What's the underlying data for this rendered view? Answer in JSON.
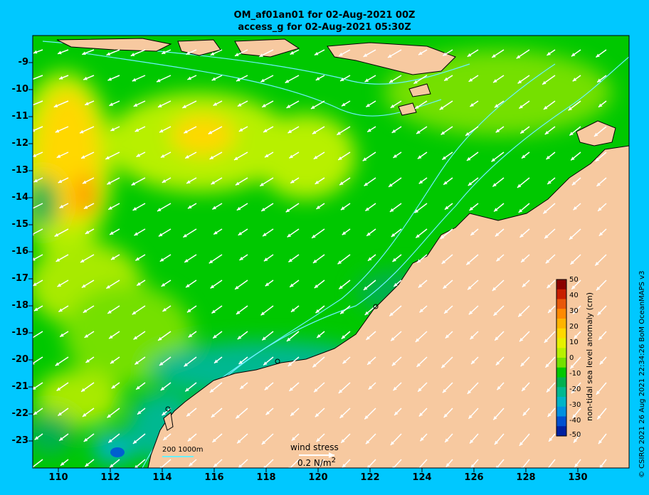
{
  "title_line1": "OM_af01an01 for 02-Aug-2021 00Z",
  "title_line2": "access_g for 02-Aug-2021 05:30Z",
  "y_axis": {
    "ticks": [
      "-9",
      "-10",
      "-11",
      "-12",
      "-13",
      "-14",
      "-15",
      "-16",
      "-17",
      "-18",
      "-19",
      "-20",
      "-21",
      "-22",
      "-23"
    ]
  },
  "x_axis": {
    "ticks": [
      "110",
      "112",
      "114",
      "116",
      "118",
      "120",
      "122",
      "124",
      "126",
      "128",
      "130"
    ]
  },
  "colorbar": {
    "label": "non-tidal sea level anomaly (cm)",
    "ticks": [
      "50",
      "40",
      "30",
      "20",
      "10",
      "0",
      "-10",
      "-20",
      "-30",
      "-40",
      "-50"
    ],
    "colors": [
      "#8b0000",
      "#c81e00",
      "#e8580a",
      "#ff8a00",
      "#ffb400",
      "#ffd800",
      "#e6f000",
      "#b8f000",
      "#74e000",
      "#00c800",
      "#00b050",
      "#00b890",
      "#00b4c8",
      "#0090e0",
      "#0050d0",
      "#0020a0"
    ]
  },
  "wind_stress": {
    "label": "wind stress",
    "value": "0.2 N/m",
    "superscript": "2"
  },
  "bathymetry_scale": {
    "label": "200  1000m"
  },
  "credit": "© CSIRO 2021  26 Aug 2021 22:34:26 BoM OceanMAPS v3",
  "colors": {
    "background": "#00c8ff",
    "land": "#f7c9a0",
    "isobath": "#6cf0ff",
    "arrow": "#ffffff"
  }
}
